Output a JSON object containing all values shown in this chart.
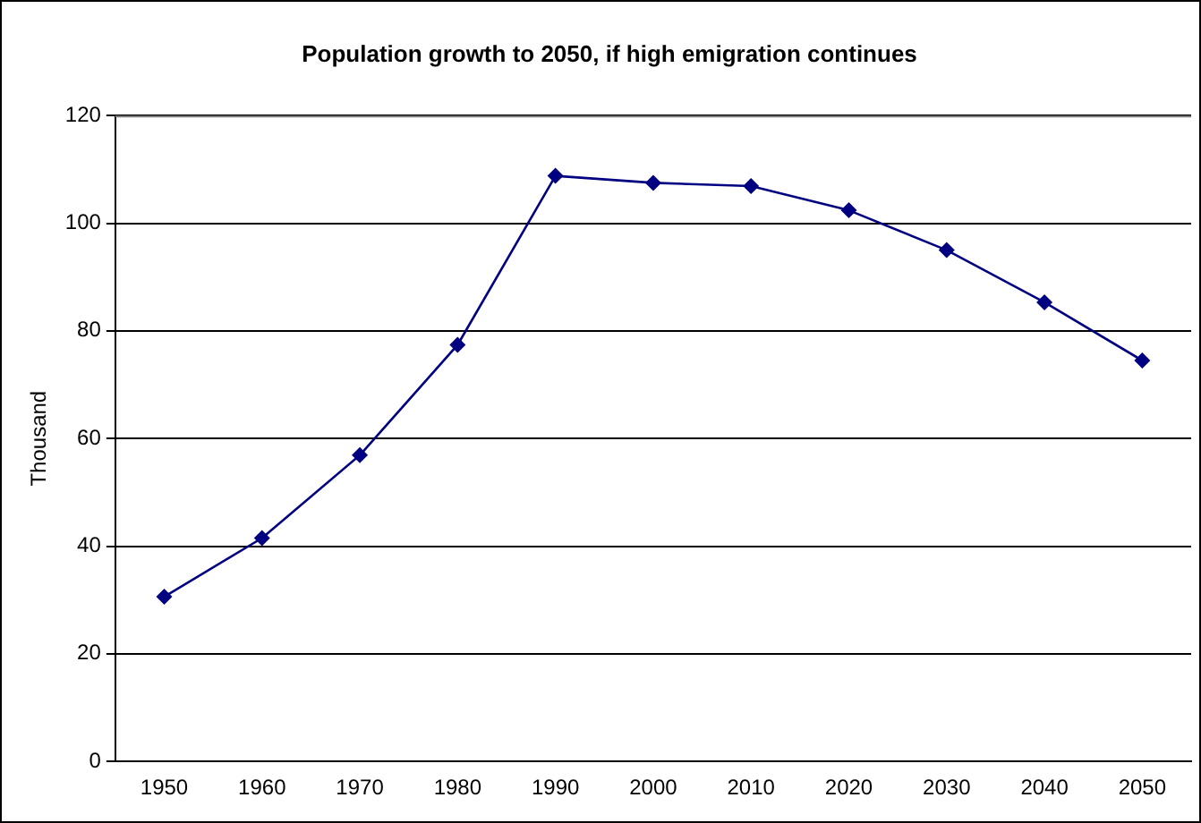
{
  "chart_data": {
    "type": "line",
    "title": "Population growth to 2050, if high emigration continues",
    "ylabel": "Thousand",
    "categories": [
      "1950",
      "1960",
      "1970",
      "1980",
      "1990",
      "2000",
      "2010",
      "2020",
      "2030",
      "2040",
      "2050"
    ],
    "series": [
      {
        "color": "#000080",
        "values": [
          30.6,
          41.5,
          56.9,
          77.4,
          108.8,
          107.5,
          106.9,
          102.4,
          95.0,
          85.3,
          74.5
        ]
      }
    ],
    "ylim": [
      0,
      120
    ],
    "yticks": [
      0,
      20,
      40,
      60,
      80,
      100,
      120
    ],
    "grid": "y",
    "legend": false,
    "marker": "diamond",
    "line_style": "solid"
  }
}
